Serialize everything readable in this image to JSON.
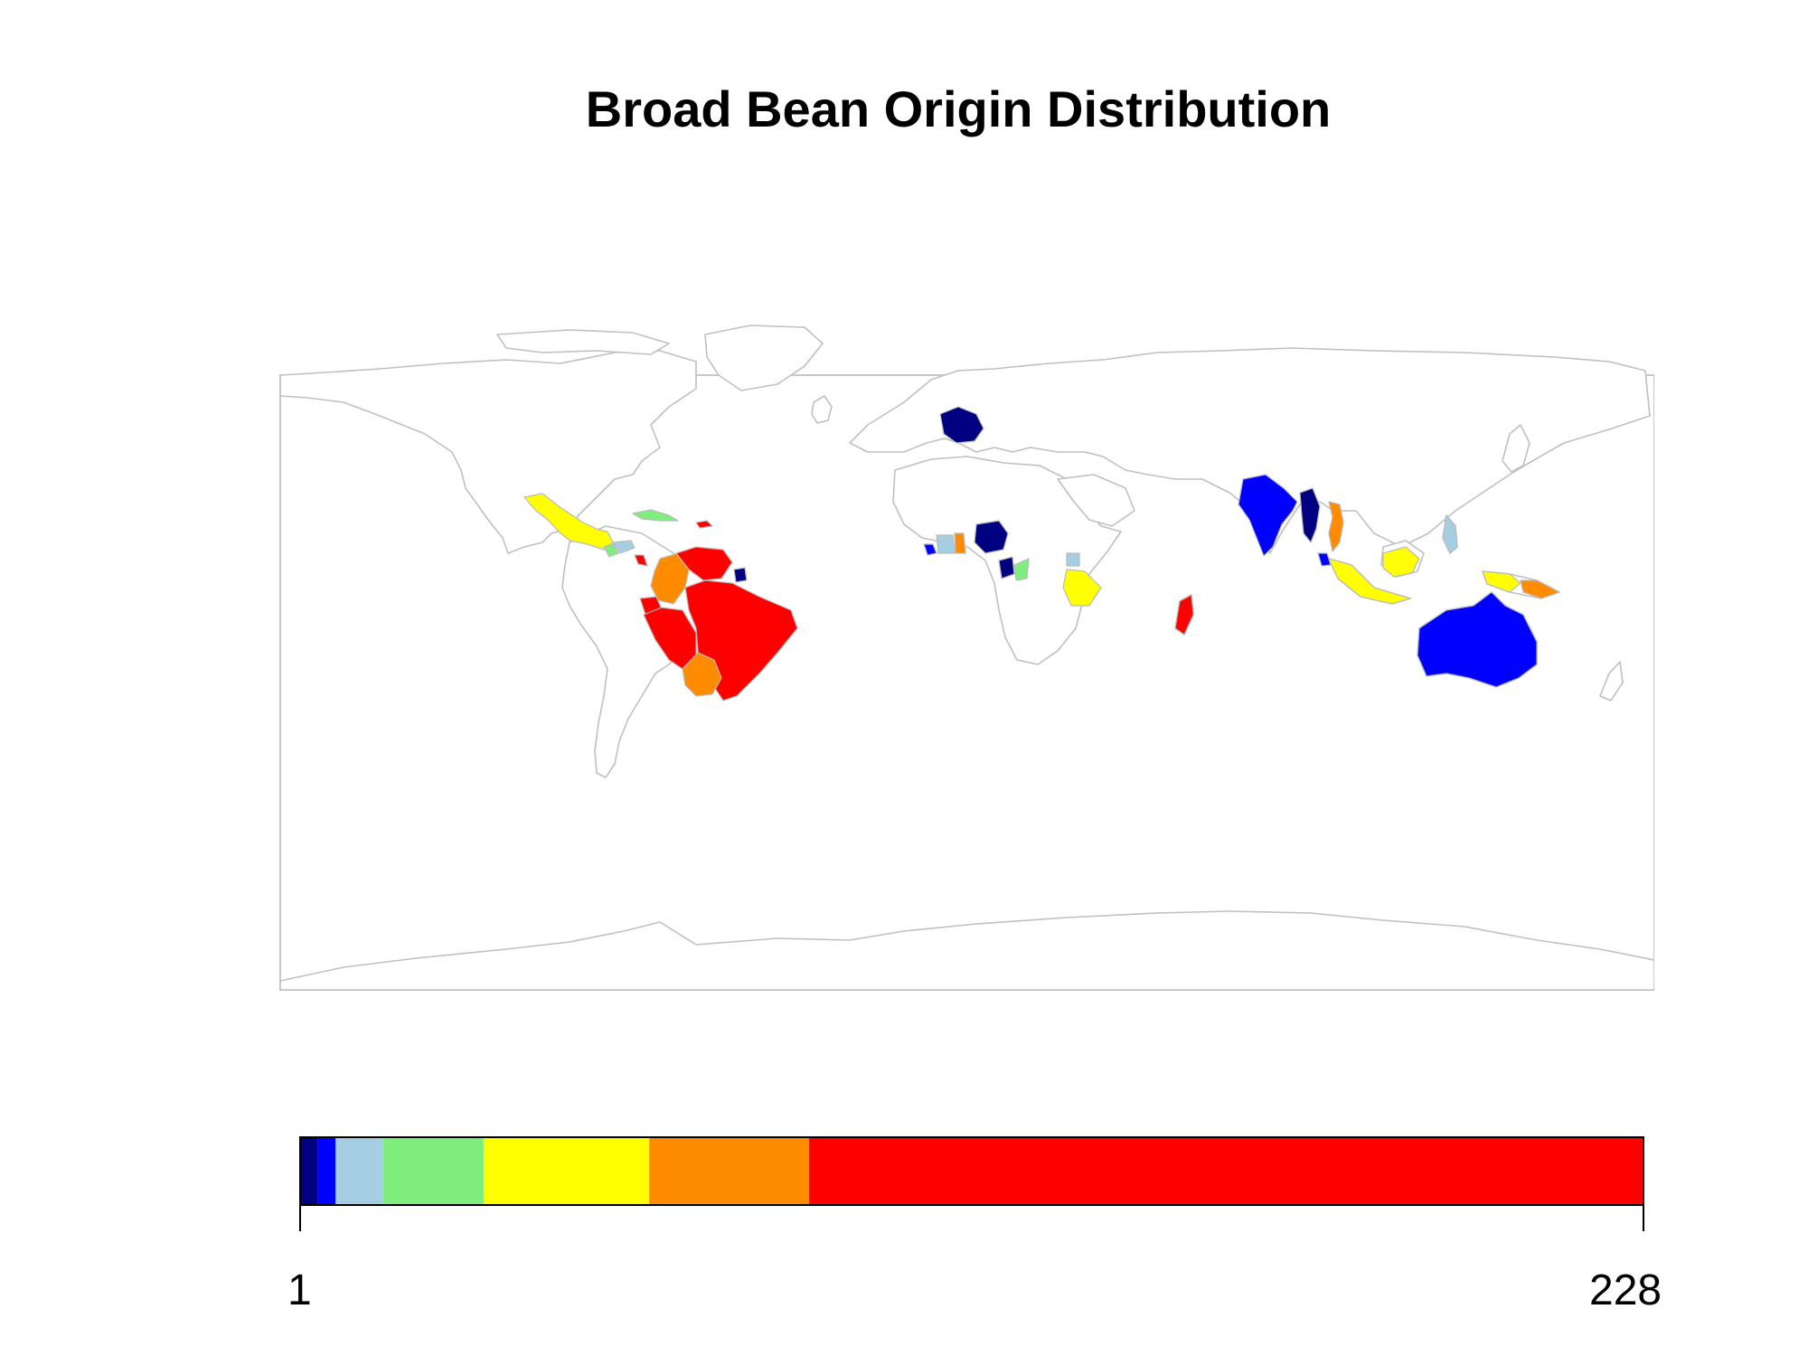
{
  "title": "Broad Bean Origin Distribution",
  "legend": {
    "min_label": "1",
    "max_label": "228",
    "colors": [
      "#000080",
      "#0000ff",
      "#a6cee3",
      "#7fee7f",
      "#ffff00",
      "#ff8c00",
      "#ff0000"
    ],
    "breaks": [
      1,
      4,
      7,
      15,
      32,
      60,
      87,
      228
    ]
  },
  "map": {
    "colored_countries": {
      "France": "#000080",
      "Nigeria": "#000080",
      "Congo": "#000080",
      "Myanmar": "#000080",
      "Suriname": "#000080",
      "India": "#0000ff",
      "Australia": "#0000ff",
      "Liberia": "#0000ff",
      "Malaysia": "#0000ff",
      "Ivory Coast": "#a6cee3",
      "Uganda": "#a6cee3",
      "Philippines": "#a6cee3",
      "Honduras": "#a6cee3",
      "Cuba": "#7fee7f",
      "Gabon": "#7fee7f",
      "Guatemala": "#7fee7f",
      "Mexico": "#ffff00",
      "Indonesia": "#ffff00",
      "Tanzania": "#ffff00",
      "Colombia": "#ff8c00",
      "Bolivia": "#ff8c00",
      "Vietnam": "#ff8c00",
      "Papua New Guinea": "#ff8c00",
      "Ghana": "#ff8c00",
      "Brazil": "#ff0000",
      "Peru": "#ff0000",
      "Ecuador": "#ff0000",
      "Venezuela": "#ff0000",
      "Madagascar": "#ff0000",
      "Dominican Republic": "#ff0000",
      "Costa Rica": "#ff0000"
    }
  }
}
